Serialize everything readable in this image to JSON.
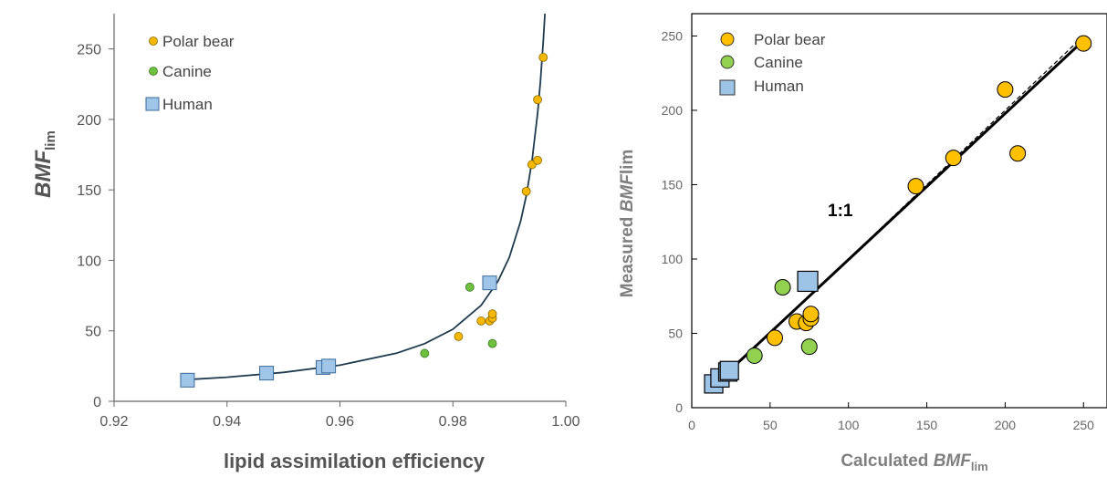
{
  "chart_data": [
    {
      "type": "scatter",
      "xlabel": "lipid assimilation efficiency",
      "ylabel_main": "BMF",
      "ylabel_sub": "lim",
      "xlim": [
        0.92,
        1.0
      ],
      "ylim": [
        0,
        275
      ],
      "xticks": [
        "0.92",
        "0.94",
        "0.96",
        "0.98",
        "1.00"
      ],
      "yticks": [
        "0",
        "50",
        "100",
        "150",
        "200",
        "250"
      ],
      "legend": [
        "Polar bear",
        "Canine",
        "Human"
      ],
      "series": [
        {
          "name": "Polar bear",
          "color": "#f5b800",
          "marker": "circle",
          "points": [
            [
              0.981,
              46
            ],
            [
              0.985,
              57
            ],
            [
              0.9865,
              57
            ],
            [
              0.987,
              59
            ],
            [
              0.987,
              62
            ],
            [
              0.993,
              149
            ],
            [
              0.994,
              168
            ],
            [
              0.995,
              171
            ],
            [
              0.995,
              214
            ],
            [
              0.996,
              244
            ]
          ]
        },
        {
          "name": "Canine",
          "color": "#70c040",
          "marker": "circle",
          "points": [
            [
              0.975,
              34
            ],
            [
              0.983,
              81
            ],
            [
              0.987,
              41
            ]
          ]
        },
        {
          "name": "Human",
          "color": "#9fc5e8",
          "marker": "square",
          "points": [
            [
              0.933,
              15
            ],
            [
              0.947,
              20
            ],
            [
              0.957,
              24
            ],
            [
              0.958,
              25
            ],
            [
              0.9865,
              84
            ]
          ]
        }
      ],
      "fit_curve": {
        "color": "#1f3b4d",
        "points": [
          [
            0.933,
            15.4
          ],
          [
            0.94,
            17.1
          ],
          [
            0.95,
            20.5
          ],
          [
            0.96,
            25.6
          ],
          [
            0.97,
            34.1
          ],
          [
            0.975,
            40.9
          ],
          [
            0.98,
            51.1
          ],
          [
            0.985,
            68.1
          ],
          [
            0.988,
            85.2
          ],
          [
            0.99,
            102.2
          ],
          [
            0.992,
            127.8
          ],
          [
            0.993,
            146.0
          ],
          [
            0.994,
            170.3
          ],
          [
            0.995,
            204.4
          ],
          [
            0.9955,
            227.1
          ],
          [
            0.996,
            255.5
          ],
          [
            0.9963,
            275
          ]
        ]
      }
    },
    {
      "type": "scatter",
      "xlabel_prefix": "Calculated ",
      "xlabel_main": "BMF",
      "xlabel_sub": "lim",
      "ylabel_prefix": "Measured ",
      "ylabel_main": "BMF",
      "ylabel_suffix": "lim",
      "xlim": [
        0,
        265
      ],
      "ylim": [
        0,
        265
      ],
      "xticks": [
        "0",
        "50",
        "100",
        "150",
        "200",
        "250"
      ],
      "yticks": [
        "0",
        "50",
        "100",
        "150",
        "200",
        "250"
      ],
      "legend": [
        "Polar bear",
        "Canine",
        "Human"
      ],
      "annotation": "1:1",
      "series": [
        {
          "name": "Polar bear",
          "color": "#ffc000",
          "marker": "circle",
          "points": [
            [
              53,
              47
            ],
            [
              67,
              58
            ],
            [
              73,
              57
            ],
            [
              76,
              60
            ],
            [
              76,
              63
            ],
            [
              143,
              149
            ],
            [
              167,
              168
            ],
            [
              200,
              214
            ],
            [
              208,
              171
            ],
            [
              250,
              245
            ]
          ]
        },
        {
          "name": "Canine",
          "color": "#92d050",
          "marker": "circle",
          "points": [
            [
              40,
              35
            ],
            [
              58,
              81
            ],
            [
              75,
              41
            ]
          ]
        },
        {
          "name": "Human",
          "color": "#9dc3e6",
          "marker": "square",
          "points": [
            [
              14,
              16
            ],
            [
              18,
              20
            ],
            [
              23,
              24
            ],
            [
              24,
              25
            ],
            [
              74,
              85
            ]
          ]
        }
      ],
      "identity_line": [
        [
          15,
          15
        ],
        [
          250,
          250
        ]
      ],
      "regression_line": [
        [
          15,
          16
        ],
        [
          250,
          247
        ]
      ]
    }
  ]
}
